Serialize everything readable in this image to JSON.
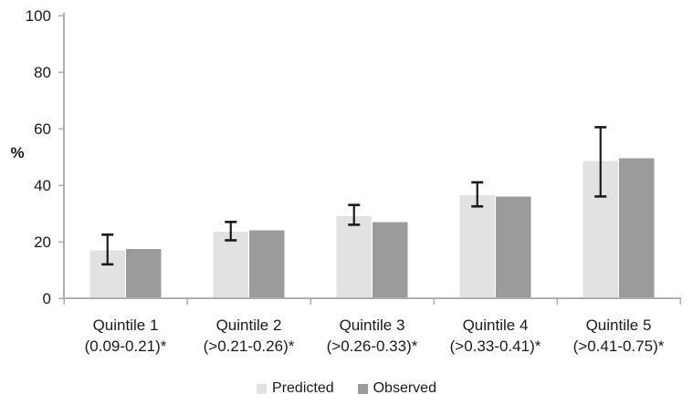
{
  "chart_data": {
    "type": "bar",
    "title": "",
    "ylabel": "%",
    "xlabel": "",
    "ylim": [
      0,
      100
    ],
    "yticks": [
      0,
      20,
      40,
      60,
      80,
      100
    ],
    "grid": false,
    "legend_position": "bottom",
    "categories": [
      {
        "line1": "Quintile 1",
        "line2": "(0.09-0.21)*"
      },
      {
        "line1": "Quintile 2",
        "line2": "(>0.21-0.26)*"
      },
      {
        "line1": "Quintile 3",
        "line2": "(>0.26-0.33)*"
      },
      {
        "line1": "Quintile 4",
        "line2": "(>0.33-0.41)*"
      },
      {
        "line1": "Quintile 5",
        "line2": "(>0.41-0.75)*"
      }
    ],
    "series": [
      {
        "name": "Predicted",
        "color": "#e2e2e2",
        "values": [
          17,
          23.5,
          29,
          36.5,
          48.5
        ]
      },
      {
        "name": "Observed",
        "color": "#9b9b9b",
        "values": [
          17.5,
          24,
          27,
          36,
          49.5
        ]
      }
    ],
    "error_bars": {
      "on_series": "Predicted",
      "low": [
        12,
        20.5,
        26,
        32.5,
        36
      ],
      "high": [
        22.5,
        27,
        33,
        41,
        60.5
      ],
      "color": "#1a1a1a"
    },
    "axis_color": "#aeaeae",
    "text_color": "#1a1a1a"
  }
}
